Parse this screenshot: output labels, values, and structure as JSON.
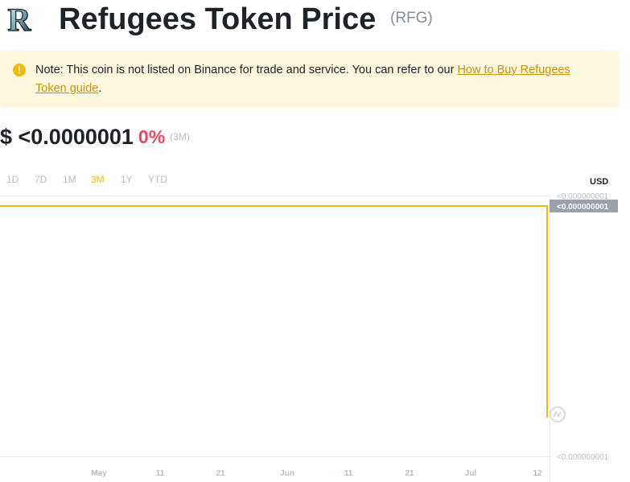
{
  "header": {
    "title": "Refugees Token Price",
    "symbol": "(RFG)",
    "logo_letter": "R",
    "logo_icon": "refugees-token-logo"
  },
  "notice": {
    "icon": "exclamation-icon",
    "text_before": "Note: This coin is not listed on Binance for trade and service. You can refer to our ",
    "link_text": "How to Buy Refugees Token guide",
    "text_after": "."
  },
  "price": {
    "value": "$ <0.0000001",
    "change": "0%",
    "period": "(3M)"
  },
  "tabs": [
    {
      "label": "1D",
      "active": false
    },
    {
      "label": "7D",
      "active": false
    },
    {
      "label": "1M",
      "active": false
    },
    {
      "label": "3M",
      "active": true
    },
    {
      "label": "1Y",
      "active": false
    },
    {
      "label": "YTD",
      "active": false
    }
  ],
  "currency_label": "USD",
  "colors": {
    "accent": "#f0b90b",
    "negative": "#f6465d",
    "notice_bg": "#fdf7e0",
    "price_tag": "#9aa1ab"
  },
  "chart_data": {
    "type": "line",
    "x": [
      "Apr 17",
      "Jul 12",
      "Jul 12"
    ],
    "y": [
      1e-07,
      1e-07,
      0.0
    ],
    "x_tick_labels": [
      "May",
      "11",
      "21",
      "Jun",
      "11",
      "21",
      "Jul",
      "12"
    ],
    "y_tick_labels": {
      "top": "<0.000000001",
      "bottom": "<0.000000001"
    },
    "current_price_tag": "<0.000000001",
    "watermark_icon": "coinmarketcap-icon",
    "grid": false,
    "ylabel": "USD"
  }
}
